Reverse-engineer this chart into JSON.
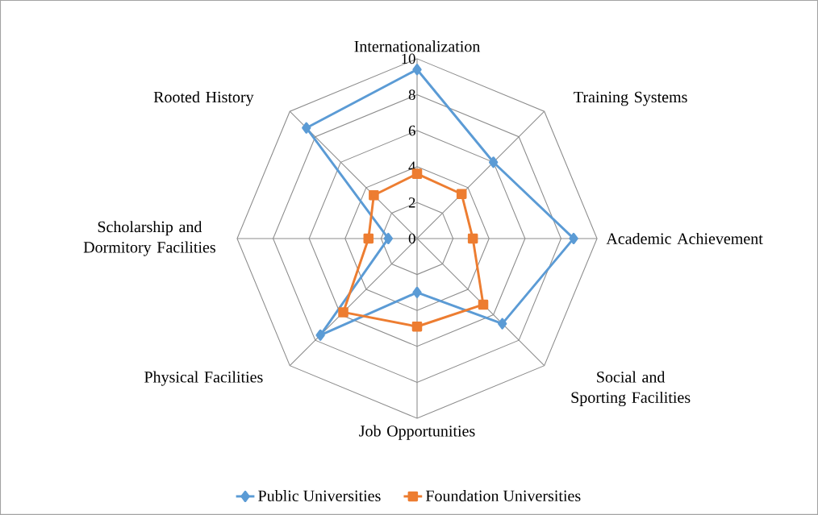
{
  "chart_data": {
    "type": "radar",
    "categories": [
      "Internationalization",
      "Training Systems",
      "Academic Achievement",
      "Social and Sporting Facilities",
      "Job Opportunities",
      "Physical Facilities",
      "Scholarship and Dormitory Facilities",
      "Rooted History"
    ],
    "series": [
      {
        "name": "Public Universities",
        "color": "#5b9bd5",
        "marker": "diamond",
        "values": [
          9.4,
          6.0,
          8.7,
          6.7,
          3.0,
          7.6,
          1.6,
          8.7
        ]
      },
      {
        "name": "Foundation Universities",
        "color": "#ed7d31",
        "marker": "square",
        "values": [
          3.6,
          3.5,
          3.1,
          5.2,
          4.9,
          5.8,
          2.7,
          3.4
        ]
      }
    ],
    "ylim": [
      0,
      10
    ],
    "yticks": [
      0,
      2,
      4,
      6,
      8,
      10
    ],
    "grid": true,
    "legend": "bottom"
  }
}
